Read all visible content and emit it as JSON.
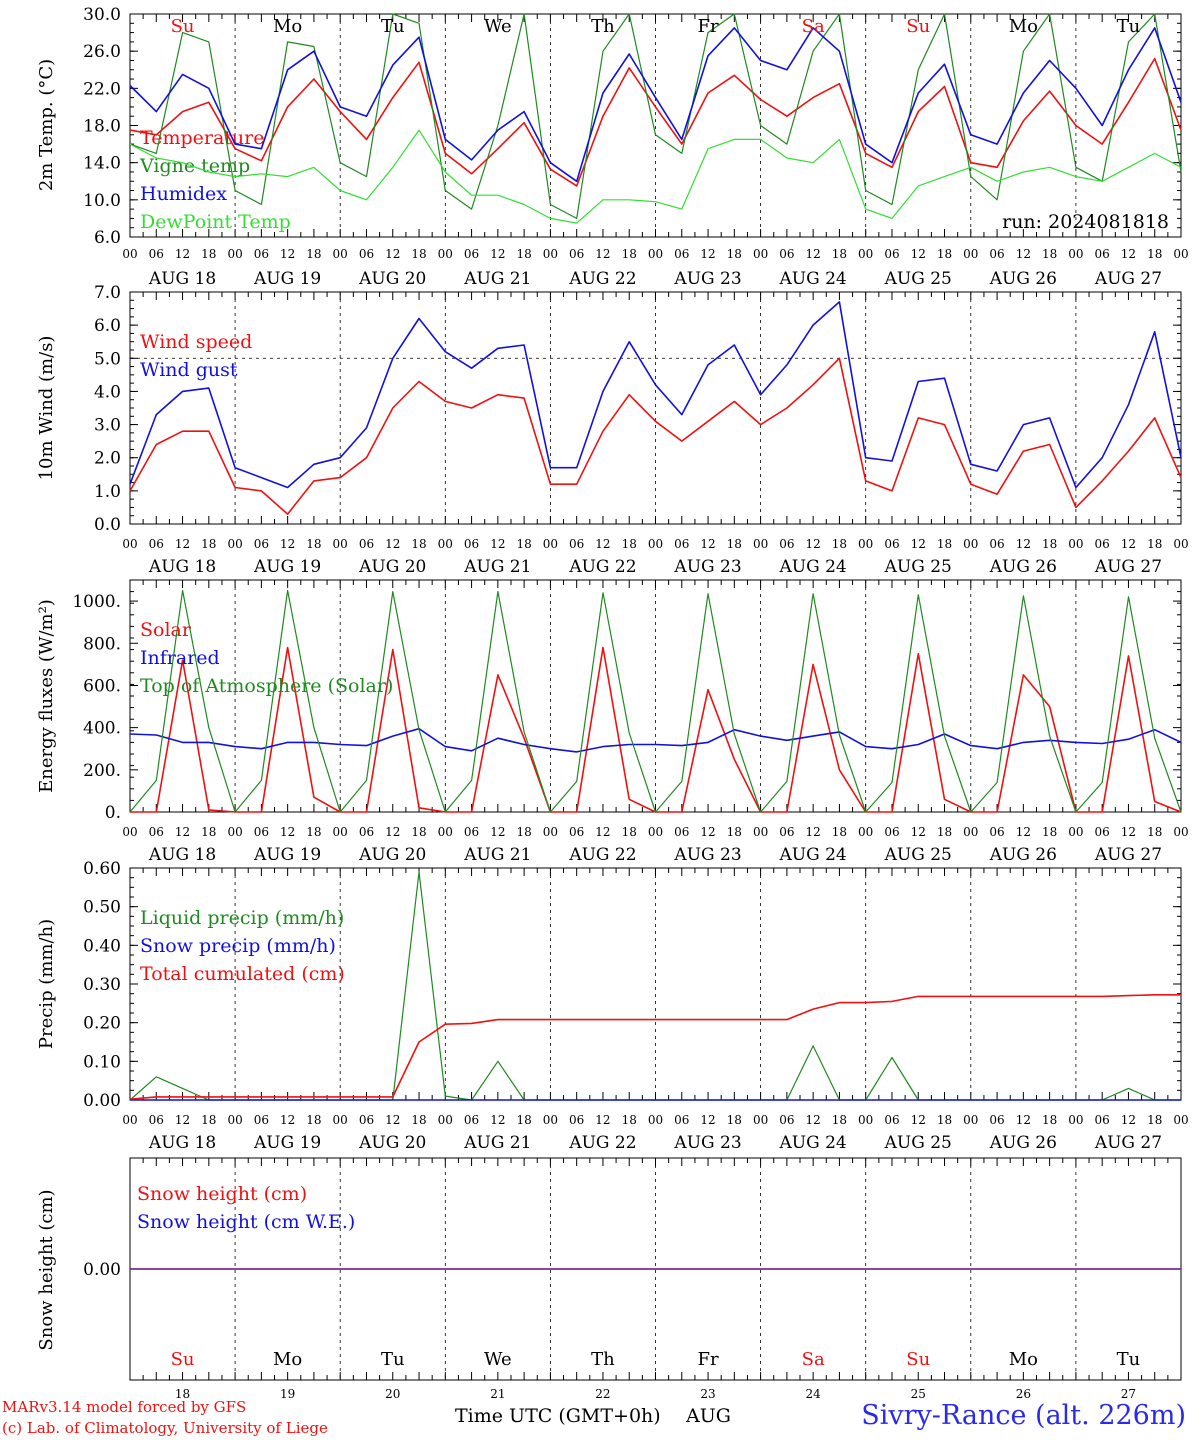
{
  "colors": {
    "red": "#ee1111",
    "green": "#1f8a1f",
    "blue": "#1111dd",
    "lightgreen": "#33dd33",
    "purple": "#7a2a9a"
  },
  "chart_data": [
    {
      "type": "line",
      "ylabel": "2m Temp. (°C)",
      "ylim": [
        6,
        30
      ],
      "yticks": [
        "30.0",
        "26.0",
        "22.0",
        "18.0",
        "14.0",
        "10.0",
        "6.0"
      ],
      "day_labels_top": [
        "Su",
        "Mo",
        "Tu",
        "We",
        "Th",
        "Fr",
        "Sa",
        "Su",
        "Mo",
        "Tu"
      ],
      "annotation": "run: 2024081818",
      "x_hours": [
        0,
        6,
        12,
        18,
        24,
        30,
        36,
        42,
        48,
        54,
        60,
        66,
        72,
        78,
        84,
        90,
        96,
        102,
        108,
        114,
        120,
        126,
        132,
        138,
        144,
        150,
        156,
        162,
        168,
        174,
        180,
        186,
        192,
        198,
        204,
        210,
        216,
        222,
        228,
        234,
        240
      ],
      "series": [
        {
          "name": "Temperature",
          "color": "red",
          "values": [
            17.5,
            17.0,
            19.5,
            20.5,
            15.5,
            14.2,
            20.0,
            23.0,
            19.5,
            16.5,
            21.0,
            24.8,
            15.0,
            12.8,
            15.5,
            18.3,
            13.3,
            11.5,
            19.0,
            24.2,
            20.0,
            16.0,
            21.5,
            23.4,
            20.8,
            19.0,
            21.0,
            22.5,
            15.0,
            13.5,
            19.5,
            22.2,
            14.0,
            13.5,
            18.5,
            21.7,
            18.0,
            16.0,
            20.5,
            25.2,
            17.5
          ]
        },
        {
          "name": "Vigne temp",
          "color": "green",
          "values": [
            16.0,
            15.0,
            28.0,
            27.0,
            11.0,
            9.5,
            27.0,
            26.5,
            14.0,
            12.5,
            30.0,
            29.0,
            11.0,
            9.0,
            18.0,
            30.0,
            9.5,
            8.0,
            26.0,
            30.0,
            17.0,
            15.0,
            28.0,
            30.0,
            18.0,
            16.0,
            26.0,
            30.0,
            11.0,
            9.5,
            24.0,
            30.0,
            12.5,
            10.0,
            26.0,
            30.0,
            13.5,
            12.0,
            27.0,
            30.0,
            13.0
          ]
        },
        {
          "name": "Humidex",
          "color": "blue",
          "values": [
            22.3,
            19.5,
            23.5,
            22.0,
            16.0,
            15.5,
            24.0,
            26.0,
            20.0,
            19.0,
            24.5,
            27.5,
            16.5,
            14.3,
            17.5,
            19.5,
            14.0,
            12.0,
            21.5,
            25.7,
            21.0,
            16.5,
            25.5,
            28.5,
            25.0,
            24.0,
            28.5,
            26.0,
            16.0,
            14.0,
            21.5,
            24.6,
            17.0,
            16.0,
            21.5,
            25.0,
            22.0,
            18.0,
            24.0,
            28.5,
            20.5
          ]
        },
        {
          "name": "DewPoint Temp",
          "color": "lightgreen",
          "values": [
            16.0,
            14.5,
            14.0,
            13.0,
            12.5,
            12.8,
            12.5,
            13.5,
            11.0,
            10.0,
            13.5,
            17.5,
            13.0,
            10.5,
            10.5,
            9.5,
            8.0,
            7.5,
            10.0,
            10.0,
            9.8,
            9.0,
            15.5,
            16.5,
            16.5,
            14.5,
            14.0,
            16.5,
            9.0,
            8.0,
            11.5,
            12.5,
            13.5,
            12.0,
            13.0,
            13.5,
            12.5,
            12.0,
            13.5,
            15.0,
            13.5
          ]
        }
      ]
    },
    {
      "type": "line",
      "ylabel": "10m Wind (m/s)",
      "ylim": [
        0,
        7
      ],
      "yticks": [
        "7.0",
        "6.0",
        "5.0",
        "4.0",
        "3.0",
        "2.0",
        "1.0",
        "0.0"
      ],
      "x_hours": [
        0,
        6,
        12,
        18,
        24,
        30,
        36,
        42,
        48,
        54,
        60,
        66,
        72,
        78,
        84,
        90,
        96,
        102,
        108,
        114,
        120,
        126,
        132,
        138,
        144,
        150,
        156,
        162,
        168,
        174,
        180,
        186,
        192,
        198,
        204,
        210,
        216,
        222,
        228,
        234,
        240
      ],
      "series": [
        {
          "name": "Wind speed",
          "color": "red",
          "values": [
            1.0,
            2.4,
            2.8,
            2.8,
            1.1,
            1.0,
            0.3,
            1.3,
            1.4,
            2.0,
            3.5,
            4.3,
            3.7,
            3.5,
            3.9,
            3.8,
            1.2,
            1.2,
            2.8,
            3.9,
            3.1,
            2.5,
            3.1,
            3.7,
            3.0,
            3.5,
            4.2,
            5.0,
            1.3,
            1.0,
            3.2,
            3.0,
            1.2,
            0.9,
            2.2,
            2.4,
            0.5,
            1.3,
            2.2,
            3.2,
            1.4
          ]
        },
        {
          "name": "Wind gust",
          "color": "blue",
          "values": [
            1.2,
            3.3,
            4.0,
            4.1,
            1.7,
            1.4,
            1.1,
            1.8,
            2.0,
            2.9,
            5.0,
            6.2,
            5.2,
            4.7,
            5.3,
            5.4,
            1.7,
            1.7,
            4.0,
            5.5,
            4.2,
            3.3,
            4.8,
            5.4,
            3.9,
            4.8,
            6.0,
            6.7,
            2.0,
            1.9,
            4.3,
            4.4,
            1.8,
            1.6,
            3.0,
            3.2,
            1.1,
            2.0,
            3.6,
            5.8,
            2.0
          ]
        }
      ],
      "reference_line": 5.0
    },
    {
      "type": "line",
      "ylabel": "Energy fluxes (W/m²)",
      "ylim": [
        0,
        1100
      ],
      "yticks": [
        "1000.",
        "800.",
        "600.",
        "400.",
        "200.",
        "0."
      ],
      "x_hours": [
        0,
        6,
        12,
        18,
        24,
        30,
        36,
        42,
        48,
        54,
        60,
        66,
        72,
        78,
        84,
        90,
        96,
        102,
        108,
        114,
        120,
        126,
        132,
        138,
        144,
        150,
        156,
        162,
        168,
        174,
        180,
        186,
        192,
        198,
        204,
        210,
        216,
        222,
        228,
        234,
        240
      ],
      "series": [
        {
          "name": "Solar",
          "color": "red",
          "values": [
            0,
            0,
            720,
            10,
            0,
            0,
            780,
            70,
            0,
            0,
            770,
            20,
            0,
            0,
            650,
            350,
            0,
            0,
            780,
            60,
            0,
            0,
            580,
            250,
            0,
            0,
            700,
            200,
            0,
            0,
            750,
            60,
            0,
            0,
            650,
            500,
            0,
            0,
            740,
            50,
            0
          ]
        },
        {
          "name": "Infrared",
          "color": "blue",
          "values": [
            370,
            365,
            330,
            330,
            310,
            300,
            330,
            330,
            320,
            315,
            360,
            395,
            310,
            290,
            350,
            320,
            300,
            285,
            310,
            320,
            320,
            315,
            330,
            390,
            360,
            340,
            360,
            380,
            310,
            300,
            320,
            370,
            315,
            300,
            330,
            340,
            330,
            325,
            345,
            390,
            330
          ]
        },
        {
          "name": "Top of Atmosphere (Solar)",
          "color": "green",
          "values": [
            0,
            150,
            1050,
            400,
            0,
            150,
            1050,
            400,
            0,
            150,
            1045,
            390,
            0,
            150,
            1045,
            380,
            0,
            145,
            1040,
            375,
            0,
            145,
            1035,
            370,
            0,
            145,
            1035,
            365,
            0,
            140,
            1030,
            360,
            0,
            140,
            1025,
            360,
            0,
            140,
            1020,
            350,
            0
          ]
        }
      ]
    },
    {
      "type": "line",
      "ylabel": "Precip (mm/h)",
      "ylim": [
        0,
        0.6
      ],
      "yticks": [
        "0.60",
        "0.50",
        "0.40",
        "0.30",
        "0.20",
        "0.10",
        "0.00"
      ],
      "x_hours": [
        0,
        6,
        12,
        18,
        24,
        30,
        36,
        42,
        48,
        54,
        60,
        66,
        72,
        78,
        84,
        90,
        96,
        102,
        108,
        114,
        120,
        126,
        132,
        138,
        144,
        150,
        156,
        162,
        168,
        174,
        180,
        186,
        192,
        198,
        204,
        210,
        216,
        222,
        228,
        234,
        240
      ],
      "series": [
        {
          "name": "Liquid precip (mm/h)",
          "color": "green",
          "values": [
            0,
            0.06,
            0.03,
            0,
            0,
            0,
            0,
            0,
            0,
            0,
            0,
            0.59,
            0.01,
            0,
            0.1,
            0,
            0,
            0,
            0,
            0,
            0,
            0,
            0,
            0,
            0,
            0,
            0.14,
            0,
            0,
            0.11,
            0,
            0,
            0,
            0,
            0,
            0,
            0,
            0,
            0.03,
            0,
            0
          ]
        },
        {
          "name": "Snow precip (mm/h)",
          "color": "blue",
          "values": [
            0,
            0,
            0,
            0,
            0,
            0,
            0,
            0,
            0,
            0,
            0,
            0,
            0,
            0,
            0,
            0,
            0,
            0,
            0,
            0,
            0,
            0,
            0,
            0,
            0,
            0,
            0,
            0,
            0,
            0,
            0,
            0,
            0,
            0,
            0,
            0,
            0,
            0,
            0,
            0,
            0
          ]
        },
        {
          "name": "Total cumulated (cm)",
          "color": "red",
          "values": [
            0.002,
            0.008,
            0.008,
            0.008,
            0.008,
            0.008,
            0.008,
            0.008,
            0.008,
            0.008,
            0.008,
            0.15,
            0.196,
            0.198,
            0.208,
            0.208,
            0.208,
            0.208,
            0.208,
            0.208,
            0.208,
            0.208,
            0.208,
            0.208,
            0.208,
            0.208,
            0.235,
            0.252,
            0.252,
            0.255,
            0.268,
            0.268,
            0.268,
            0.268,
            0.268,
            0.268,
            0.268,
            0.268,
            0.27,
            0.272,
            0.272
          ]
        }
      ]
    },
    {
      "type": "line",
      "ylabel": "Snow height (cm)",
      "yticks": [
        "0.00"
      ],
      "x_hours": [
        0,
        240
      ],
      "series": [
        {
          "name": "Snow height (cm)",
          "color": "red",
          "values": [
            0,
            0
          ]
        },
        {
          "name": "Snow height (cm W.E.)",
          "color": "blue",
          "values": [
            0,
            0
          ]
        }
      ],
      "day_labels_bottom": [
        "Su",
        "Mo",
        "Tu",
        "We",
        "Th",
        "Fr",
        "Sa",
        "Su",
        "Mo",
        "Tu"
      ],
      "day_numbers": [
        "18",
        "19",
        "20",
        "21",
        "22",
        "23",
        "24",
        "25",
        "26",
        "27"
      ]
    }
  ],
  "hour_labels": [
    "00",
    "06",
    "12",
    "18"
  ],
  "date_labels": [
    "AUG 18",
    "AUG 19",
    "AUG 20",
    "AUG 21",
    "AUG 22",
    "AUG 23",
    "AUG 24",
    "AUG 25",
    "AUG 26",
    "AUG 27"
  ],
  "weekend_days": [
    "Su",
    "Sa"
  ],
  "footer": {
    "credit_line1": "MARv3.14 model forced by GFS",
    "credit_line2": "(c) Lab. of Climatology, University of Liege",
    "xlabel": "Time UTC (GMT+0h)",
    "month": "AUG",
    "location": "Sivry-Rance (alt. 226m)"
  }
}
